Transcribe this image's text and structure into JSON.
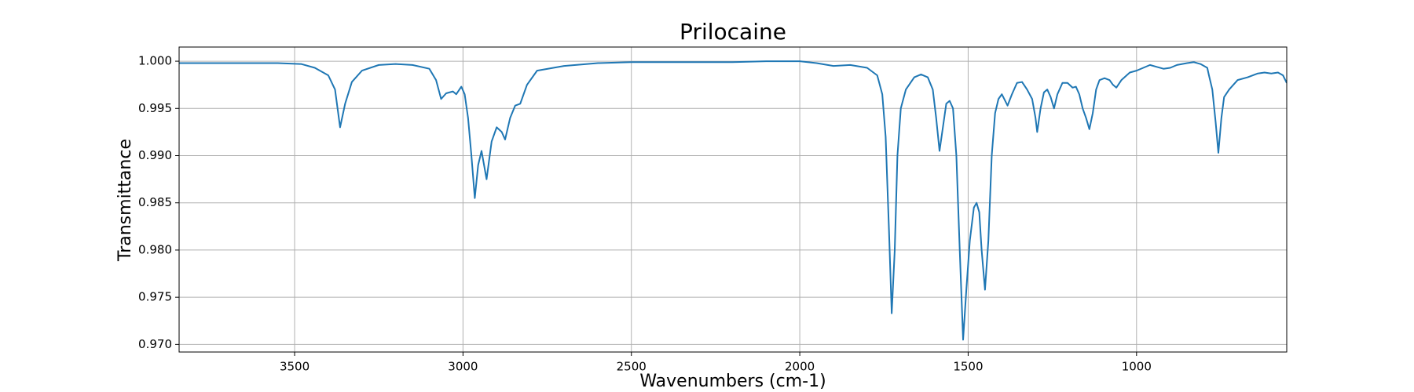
{
  "chart_data": {
    "type": "line",
    "title": "Prilocaine",
    "x_label": "Wavenumbers (cm-1)",
    "y_label": "Transmittance",
    "xlim": [
      3843,
      554
    ],
    "ylim": [
      0.9692,
      1.0015
    ],
    "xticks": [
      3500,
      3000,
      2500,
      2000,
      1500,
      1000
    ],
    "yticks": [
      {
        "value": 0.97,
        "label": "0.970"
      },
      {
        "value": 0.975,
        "label": "0.975"
      },
      {
        "value": 0.98,
        "label": "0.980"
      },
      {
        "value": 0.985,
        "label": "0.985"
      },
      {
        "value": 0.99,
        "label": "0.990"
      },
      {
        "value": 0.995,
        "label": "0.995"
      },
      {
        "value": 1.0,
        "label": "1.000"
      }
    ],
    "grid": true,
    "series": [
      {
        "name": "Prilocaine",
        "color": "#1f77b4",
        "x": [
          3843,
          3750,
          3650,
          3550,
          3480,
          3440,
          3400,
          3380,
          3365,
          3350,
          3330,
          3300,
          3250,
          3200,
          3150,
          3100,
          3080,
          3065,
          3050,
          3030,
          3020,
          3005,
          2995,
          2985,
          2975,
          2965,
          2955,
          2945,
          2935,
          2930,
          2915,
          2900,
          2885,
          2875,
          2860,
          2845,
          2830,
          2810,
          2780,
          2700,
          2600,
          2500,
          2400,
          2300,
          2200,
          2100,
          2000,
          1950,
          1900,
          1850,
          1800,
          1770,
          1755,
          1745,
          1735,
          1727,
          1718,
          1710,
          1700,
          1685,
          1660,
          1640,
          1620,
          1605,
          1595,
          1585,
          1575,
          1565,
          1555,
          1545,
          1535,
          1525,
          1515,
          1505,
          1495,
          1483,
          1475,
          1467,
          1460,
          1450,
          1440,
          1430,
          1420,
          1410,
          1400,
          1390,
          1383,
          1370,
          1355,
          1340,
          1325,
          1310,
          1300,
          1295,
          1285,
          1275,
          1265,
          1255,
          1245,
          1235,
          1220,
          1205,
          1190,
          1180,
          1170,
          1160,
          1150,
          1140,
          1130,
          1120,
          1110,
          1095,
          1080,
          1070,
          1060,
          1045,
          1020,
          1000,
          980,
          960,
          940,
          920,
          900,
          880,
          850,
          830,
          810,
          790,
          785,
          775,
          765,
          757,
          748,
          740,
          725,
          700,
          670,
          640,
          620,
          600,
          580,
          565,
          554
        ],
        "values": [
          0.9998,
          0.9998,
          0.9998,
          0.9998,
          0.9997,
          0.9993,
          0.9985,
          0.997,
          0.993,
          0.9955,
          0.9978,
          0.999,
          0.9996,
          0.9997,
          0.9996,
          0.9992,
          0.998,
          0.996,
          0.9966,
          0.9968,
          0.9965,
          0.9973,
          0.9965,
          0.994,
          0.99,
          0.9855,
          0.989,
          0.9905,
          0.9885,
          0.9875,
          0.9915,
          0.993,
          0.9925,
          0.9917,
          0.994,
          0.9953,
          0.9955,
          0.9975,
          0.999,
          0.9995,
          0.9998,
          0.9999,
          0.9999,
          0.9999,
          0.9999,
          1.0,
          1.0,
          0.9998,
          0.9995,
          0.9996,
          0.9993,
          0.9985,
          0.9965,
          0.992,
          0.982,
          0.9733,
          0.98,
          0.99,
          0.995,
          0.997,
          0.9983,
          0.9986,
          0.9983,
          0.997,
          0.994,
          0.9905,
          0.993,
          0.9955,
          0.9958,
          0.995,
          0.99,
          0.98,
          0.9705,
          0.976,
          0.981,
          0.9845,
          0.985,
          0.984,
          0.98,
          0.9758,
          0.981,
          0.99,
          0.9945,
          0.996,
          0.9965,
          0.9958,
          0.9953,
          0.9965,
          0.9977,
          0.9978,
          0.997,
          0.996,
          0.994,
          0.9925,
          0.995,
          0.9967,
          0.997,
          0.9962,
          0.995,
          0.9965,
          0.9977,
          0.9977,
          0.9972,
          0.9973,
          0.9965,
          0.995,
          0.994,
          0.9928,
          0.9945,
          0.997,
          0.998,
          0.9982,
          0.998,
          0.9975,
          0.9972,
          0.998,
          0.9988,
          0.999,
          0.9993,
          0.9996,
          0.9994,
          0.9992,
          0.9993,
          0.9996,
          0.9998,
          0.9999,
          0.9997,
          0.9993,
          0.9985,
          0.997,
          0.9935,
          0.9903,
          0.994,
          0.9962,
          0.997,
          0.998,
          0.9983,
          0.9987,
          0.9988,
          0.9987,
          0.9988,
          0.9985,
          0.9977
        ]
      }
    ]
  }
}
